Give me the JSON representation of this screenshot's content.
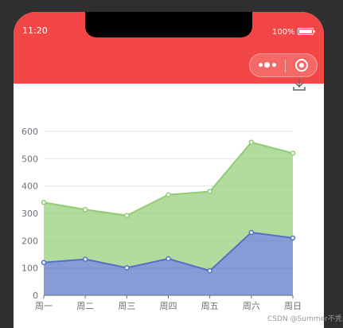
{
  "status_bar": {
    "time": "11:20",
    "battery": "100%"
  },
  "toolbar": {
    "menu_icon": "more-dots-icon",
    "close_icon": "target-circle-icon",
    "save_icon": "download-icon"
  },
  "watermark": "CSDN @Summer不秃",
  "colors": {
    "header": "#f24746",
    "series_top": "#91cc75",
    "series_bottom": "#5470c6"
  },
  "chart_data": {
    "type": "area",
    "stacked": true,
    "categories": [
      "周一",
      "周二",
      "周三",
      "周四",
      "周五",
      "周六",
      "周日"
    ],
    "series": [
      {
        "values": [
          120,
          132,
          101,
          134,
          90,
          230,
          210
        ]
      },
      {
        "values": [
          220,
          182,
          191,
          234,
          290,
          330,
          310
        ]
      }
    ],
    "ylim": [
      0,
      600
    ],
    "yticks": [
      0,
      100,
      200,
      300,
      400,
      500,
      600
    ],
    "grid": true
  }
}
